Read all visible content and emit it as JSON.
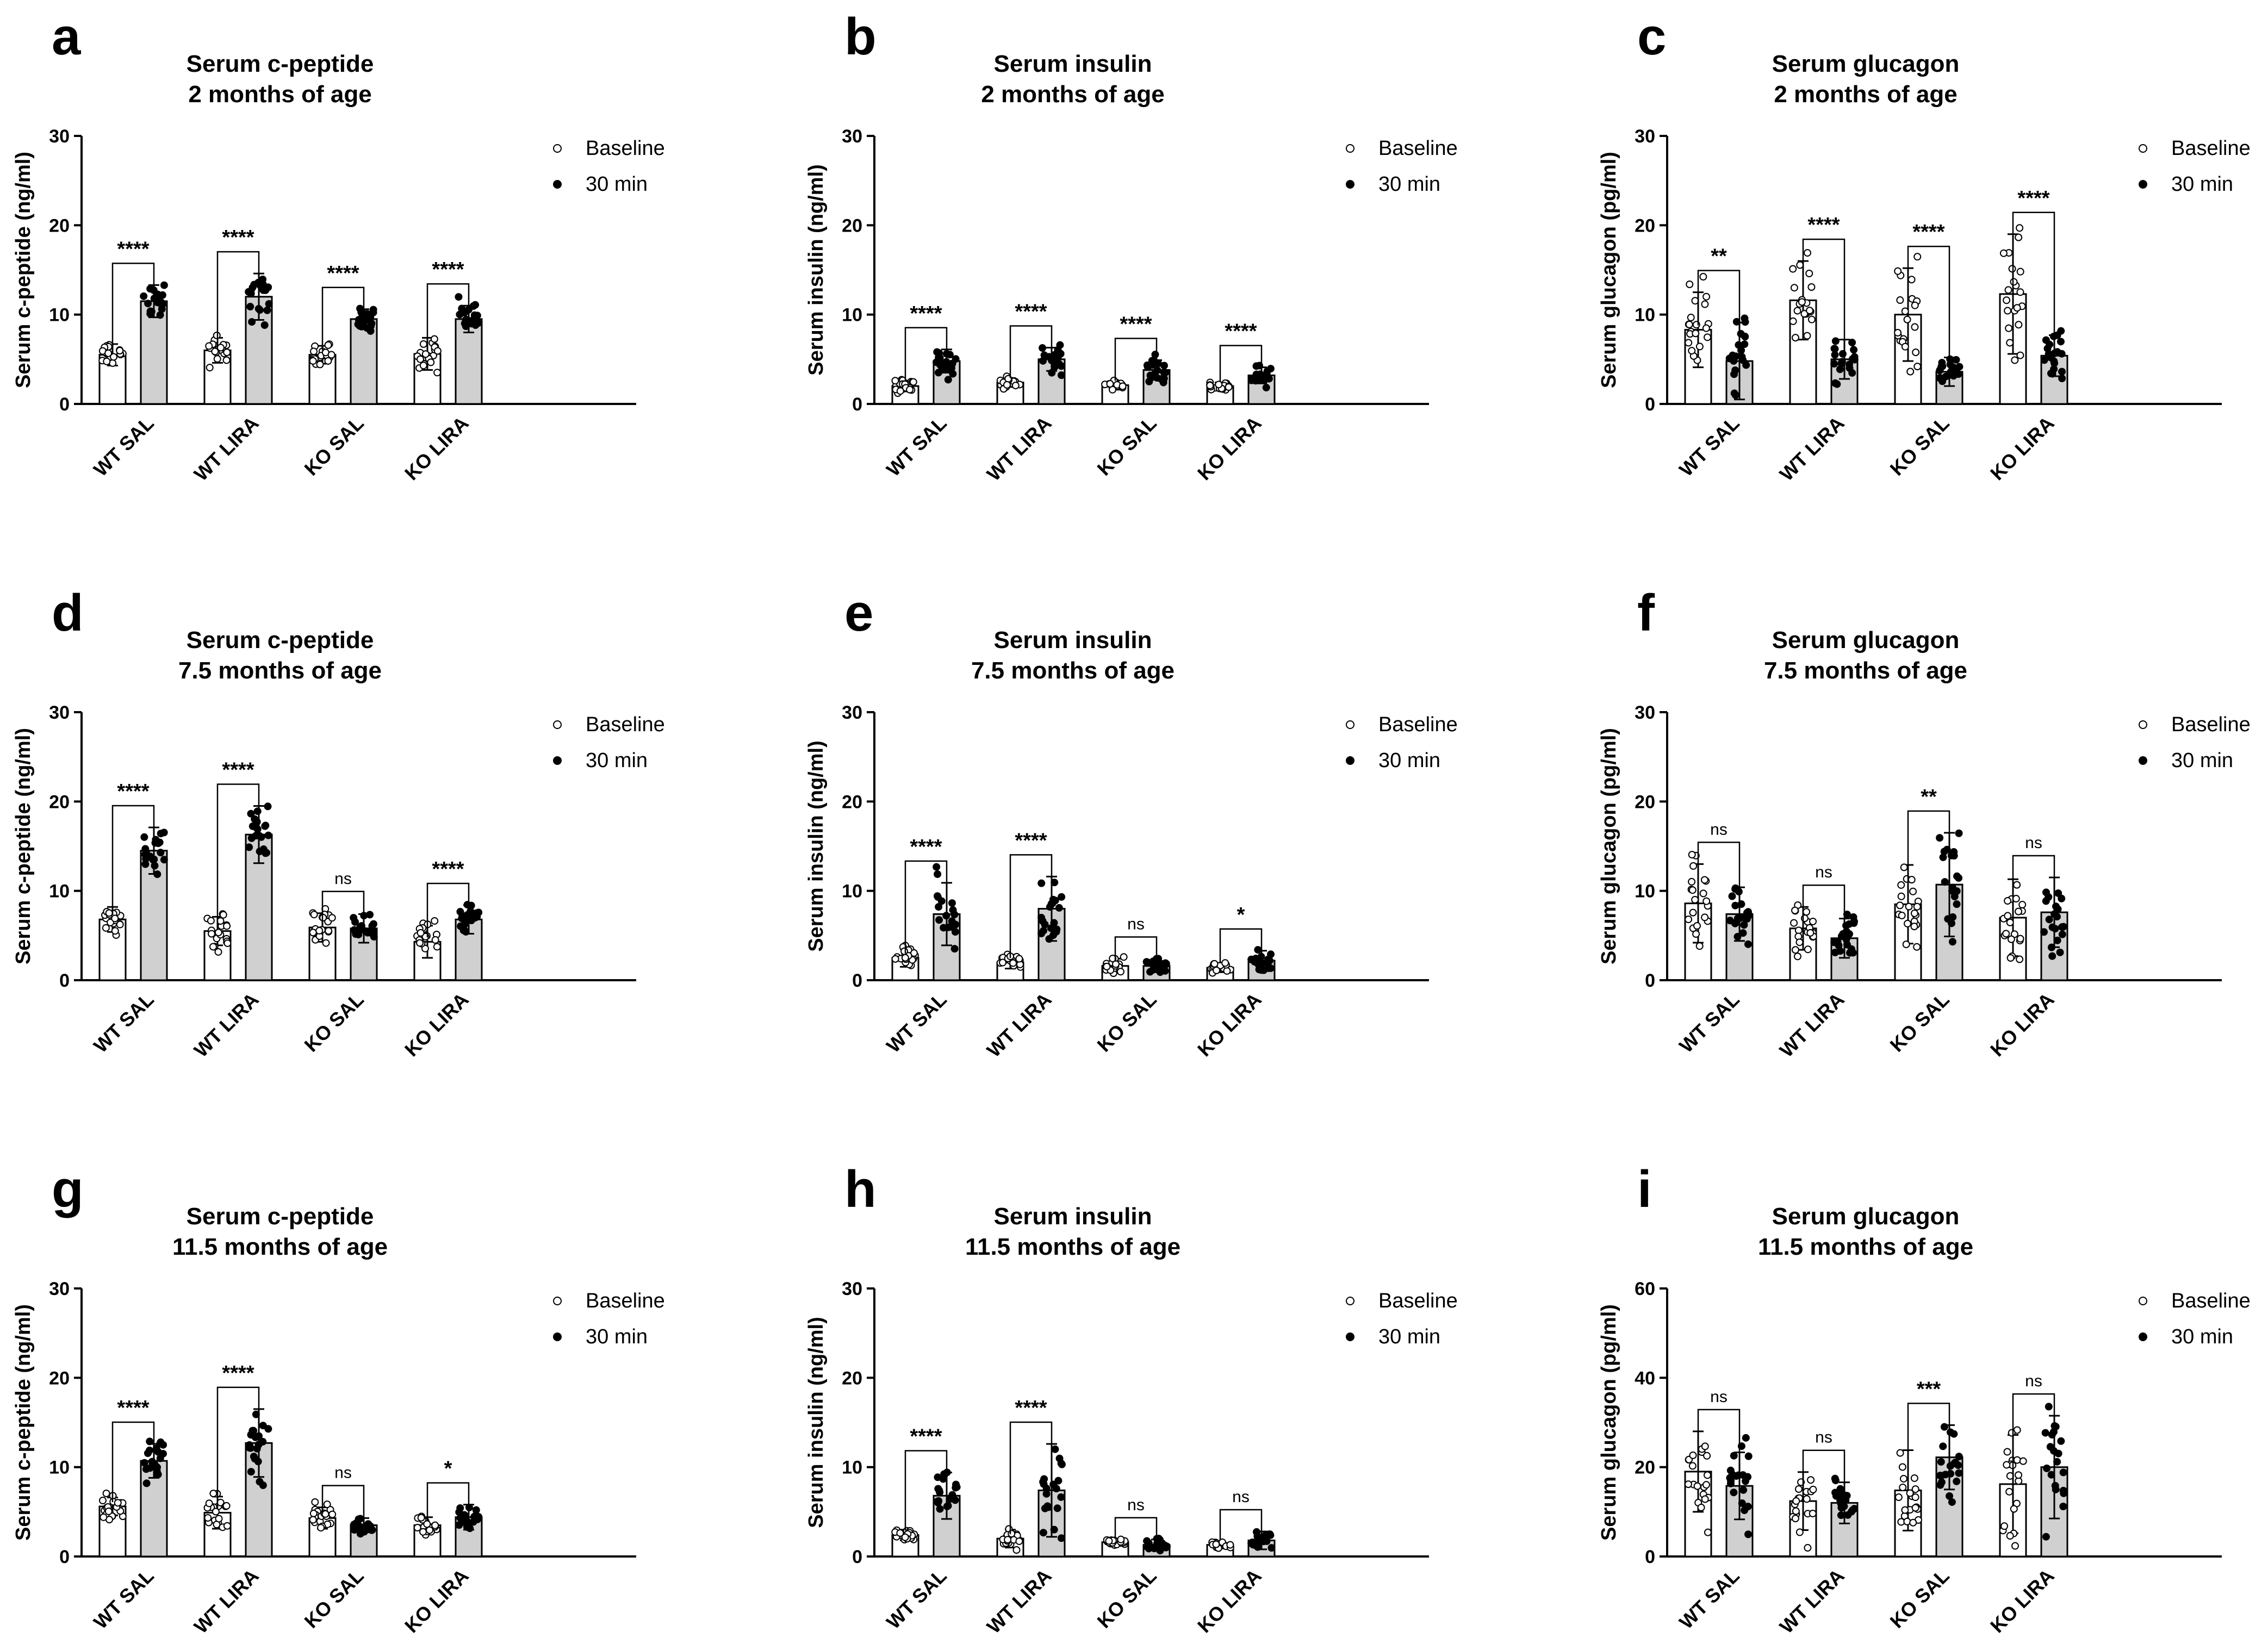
{
  "legend": {
    "baseline": "Baseline",
    "min30": "30 min"
  },
  "chart_data": [
    {
      "letter": "a",
      "type": "bar",
      "title": "Serum c-peptide",
      "subtitle": "2 months of age",
      "ylabel": "Serum c-peptide (ng/ml)",
      "ylim": [
        0,
        30
      ],
      "yticks": [
        0,
        10,
        20,
        30
      ],
      "categories": [
        "WT SAL",
        "WT LIRA",
        "KO SAL",
        "KO LIRA"
      ],
      "series": [
        {
          "name": "Baseline",
          "values": [
            5.5,
            6.0,
            5.5,
            5.6
          ],
          "sd": [
            1.2,
            1.4,
            1.0,
            1.8
          ]
        },
        {
          "name": "30 min",
          "values": [
            11.5,
            12.0,
            9.5,
            9.5
          ],
          "sd": [
            1.8,
            2.6,
            1.1,
            1.5
          ]
        }
      ],
      "significance": [
        "****",
        "****",
        "****",
        "****"
      ]
    },
    {
      "letter": "b",
      "type": "bar",
      "title": "Serum insulin",
      "subtitle": "2 months of age",
      "ylabel": "Serum insulin (ng/ml)",
      "ylim": [
        0,
        30
      ],
      "yticks": [
        0,
        10,
        20,
        30
      ],
      "categories": [
        "WT SAL",
        "WT LIRA",
        "KO SAL",
        "KO LIRA"
      ],
      "series": [
        {
          "name": "Baseline",
          "values": [
            2.0,
            2.4,
            2.1,
            2.0
          ],
          "sd": [
            0.6,
            0.5,
            0.5,
            0.4
          ]
        },
        {
          "name": "30 min",
          "values": [
            4.8,
            5.0,
            3.8,
            3.2
          ],
          "sd": [
            1.3,
            1.3,
            1.1,
            0.9
          ]
        }
      ],
      "significance": [
        "****",
        "****",
        "****",
        "****"
      ]
    },
    {
      "letter": "c",
      "type": "bar",
      "title": "Serum glucagon",
      "subtitle": "2 months of age",
      "ylabel": "Serum glucagon (pg/ml)",
      "ylim": [
        0,
        30
      ],
      "yticks": [
        0,
        10,
        20,
        30
      ],
      "categories": [
        "WT SAL",
        "WT LIRA",
        "KO SAL",
        "KO LIRA"
      ],
      "series": [
        {
          "name": "Baseline",
          "values": [
            8.3,
            11.6,
            10.0,
            12.3
          ],
          "sd": [
            4.2,
            4.4,
            5.2,
            6.7
          ]
        },
        {
          "name": "30 min",
          "values": [
            4.8,
            5.0,
            3.6,
            5.4
          ],
          "sd": [
            4.3,
            2.2,
            1.6,
            2.3
          ]
        }
      ],
      "significance": [
        "**",
        "****",
        "****",
        "****"
      ]
    },
    {
      "letter": "d",
      "type": "bar",
      "title": "Serum c-peptide",
      "subtitle": "7.5 months of age",
      "ylabel": "Serum c-peptide (ng/ml)",
      "ylim": [
        0,
        30
      ],
      "yticks": [
        0,
        10,
        20,
        30
      ],
      "categories": [
        "WT SAL",
        "WT LIRA",
        "KO SAL",
        "KO LIRA"
      ],
      "series": [
        {
          "name": "Baseline",
          "values": [
            6.8,
            5.5,
            5.9,
            4.3
          ],
          "sd": [
            1.4,
            1.6,
            1.6,
            1.8
          ]
        },
        {
          "name": "30 min",
          "values": [
            14.5,
            16.3,
            5.8,
            6.8
          ],
          "sd": [
            2.6,
            3.2,
            1.6,
            1.6
          ]
        }
      ],
      "significance": [
        "****",
        "****",
        "ns",
        "****"
      ]
    },
    {
      "letter": "e",
      "type": "bar",
      "title": "Serum insulin",
      "subtitle": "7.5 months of age",
      "ylabel": "Serum insulin (ng/ml)",
      "ylim": [
        0,
        30
      ],
      "yticks": [
        0,
        10,
        20,
        30
      ],
      "categories": [
        "WT SAL",
        "WT LIRA",
        "KO SAL",
        "KO LIRA"
      ],
      "series": [
        {
          "name": "Baseline",
          "values": [
            2.5,
            2.0,
            1.6,
            1.4
          ],
          "sd": [
            1.0,
            0.7,
            0.8,
            0.5
          ]
        },
        {
          "name": "30 min",
          "values": [
            7.4,
            8.0,
            1.6,
            2.2
          ],
          "sd": [
            3.5,
            3.6,
            0.7,
            1.1
          ]
        }
      ],
      "significance": [
        "****",
        "****",
        "ns",
        "*"
      ]
    },
    {
      "letter": "f",
      "type": "bar",
      "title": "Serum glucagon",
      "subtitle": "7.5 months of age",
      "ylabel": "Serum glucagon (pg/ml)",
      "ylim": [
        0,
        30
      ],
      "yticks": [
        0,
        10,
        20,
        30
      ],
      "categories": [
        "WT SAL",
        "WT LIRA",
        "KO SAL",
        "KO LIRA"
      ],
      "series": [
        {
          "name": "Baseline",
          "values": [
            8.6,
            5.8,
            8.5,
            7.0
          ],
          "sd": [
            4.4,
            2.4,
            4.4,
            4.3
          ]
        },
        {
          "name": "30 min",
          "values": [
            7.4,
            4.7,
            10.7,
            7.6
          ],
          "sd": [
            3.0,
            2.2,
            5.8,
            3.9
          ]
        }
      ],
      "significance": [
        "ns",
        "ns",
        "**",
        "ns"
      ]
    },
    {
      "letter": "g",
      "type": "bar",
      "title": "Serum c-peptide",
      "subtitle": "11.5 months of age",
      "ylabel": "Serum c-peptide (ng/ml)",
      "ylim": [
        0,
        30
      ],
      "yticks": [
        0,
        10,
        20,
        30
      ],
      "categories": [
        "WT SAL",
        "WT LIRA",
        "KO SAL",
        "KO LIRA"
      ],
      "series": [
        {
          "name": "Baseline",
          "values": [
            5.6,
            4.9,
            4.3,
            3.5
          ],
          "sd": [
            1.0,
            1.8,
            1.2,
            0.9
          ]
        },
        {
          "name": "30 min",
          "values": [
            10.7,
            12.7,
            3.5,
            4.4
          ],
          "sd": [
            1.9,
            3.8,
            0.8,
            1.4
          ]
        }
      ],
      "significance": [
        "****",
        "****",
        "ns",
        "*"
      ]
    },
    {
      "letter": "h",
      "type": "bar",
      "title": "Serum insulin",
      "subtitle": "11.5 months of age",
      "ylabel": "Serum insulin (ng/ml)",
      "ylim": [
        0,
        30
      ],
      "yticks": [
        0,
        10,
        20,
        30
      ],
      "categories": [
        "WT SAL",
        "WT LIRA",
        "KO SAL",
        "KO LIRA"
      ],
      "series": [
        {
          "name": "Baseline",
          "values": [
            2.4,
            2.0,
            1.6,
            1.3
          ],
          "sd": [
            0.6,
            1.0,
            0.3,
            0.4
          ]
        },
        {
          "name": "30 min",
          "values": [
            6.8,
            7.4,
            1.3,
            1.8
          ],
          "sd": [
            2.6,
            5.2,
            0.6,
            1.0
          ]
        }
      ],
      "significance": [
        "****",
        "****",
        "ns",
        "ns"
      ]
    },
    {
      "letter": "i",
      "type": "bar",
      "title": "Serum glucagon",
      "subtitle": "11.5 months of age",
      "ylabel": "Serum glucagon (pg/ml)",
      "ylim": [
        0,
        60
      ],
      "yticks": [
        0,
        20,
        40,
        60
      ],
      "categories": [
        "WT SAL",
        "WT LIRA",
        "KO SAL",
        "KO LIRA"
      ],
      "series": [
        {
          "name": "Baseline",
          "values": [
            19.0,
            12.4,
            14.8,
            16.2
          ],
          "sd": [
            9.0,
            6.5,
            9.0,
            11.0
          ]
        },
        {
          "name": "30 min",
          "values": [
            15.8,
            12.0,
            22.2,
            20.0
          ],
          "sd": [
            7.5,
            4.6,
            7.2,
            11.5
          ]
        }
      ],
      "significance": [
        "ns",
        "ns",
        "***",
        "ns"
      ]
    }
  ]
}
